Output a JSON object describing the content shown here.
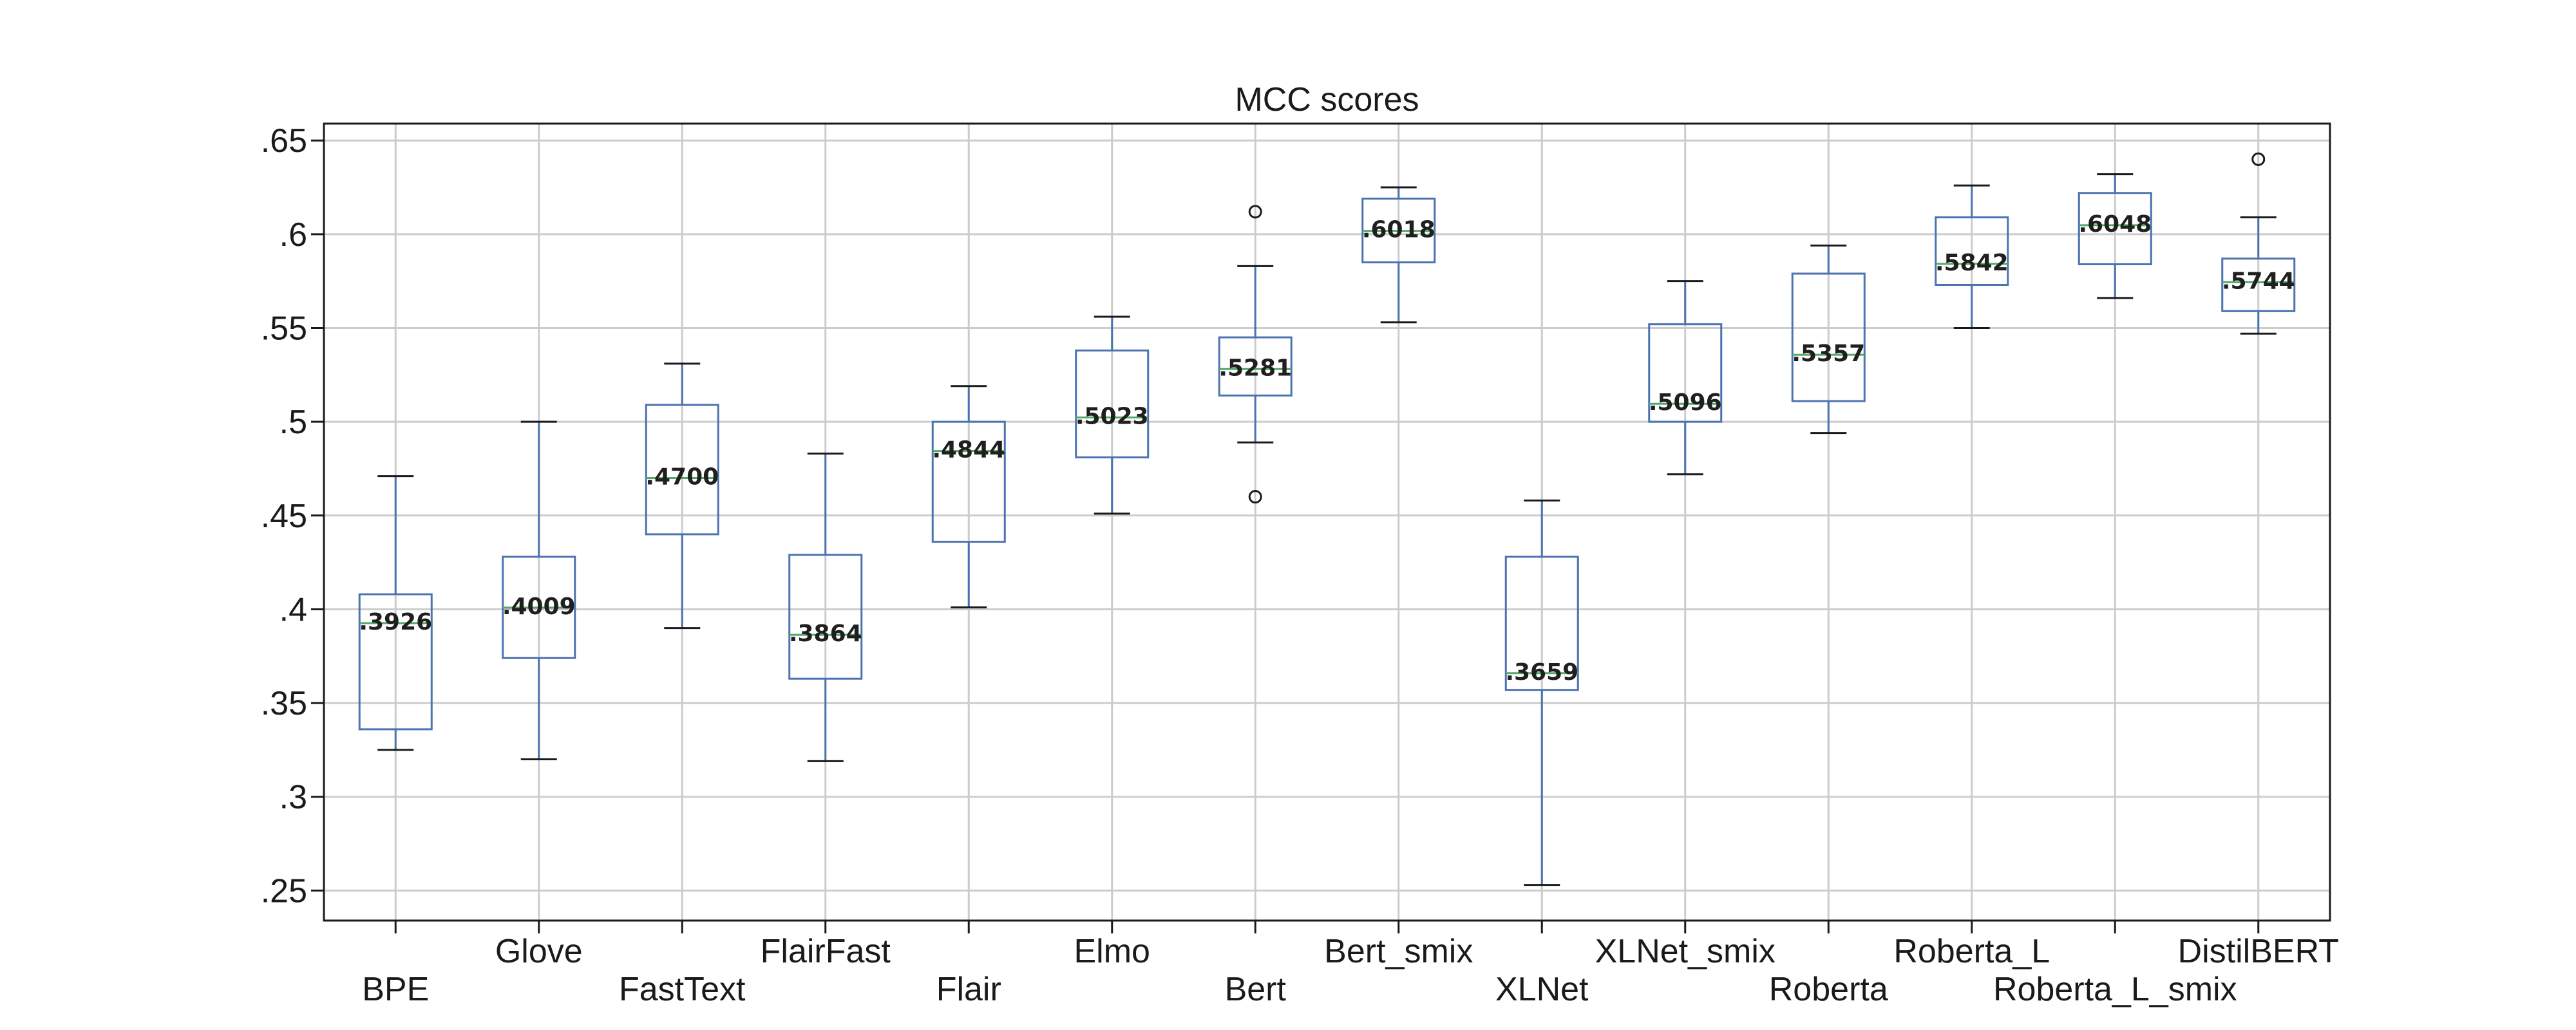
{
  "chart_data": {
    "type": "box",
    "title": "MCC scores",
    "xlabel": "",
    "ylabel": "",
    "ylim": [
      0.234,
      0.659
    ],
    "yticks": [
      ".25",
      ".3",
      ".35",
      ".4",
      ".45",
      ".5",
      ".55",
      ".6",
      ".65"
    ],
    "ytick_values": [
      0.25,
      0.3,
      0.35,
      0.4,
      0.45,
      0.5,
      0.55,
      0.6,
      0.65
    ],
    "grid": true,
    "box_color": "#4c72b0",
    "median_color": "#55a868",
    "categories": [
      "BPE",
      "Glove",
      "FastText",
      "FlairFast",
      "Flair",
      "Elmo",
      "Bert",
      "Bert_smix",
      "XLNet",
      "XLNet_smix",
      "Roberta",
      "Roberta_L",
      "Roberta_L_smix",
      "DistilBERT"
    ],
    "series": [
      {
        "category": "BPE",
        "whisker_low": 0.325,
        "q1": 0.336,
        "median": 0.3926,
        "q3": 0.408,
        "whisker_high": 0.471,
        "outliers": [],
        "median_label": ".3926"
      },
      {
        "category": "Glove",
        "whisker_low": 0.32,
        "q1": 0.374,
        "median": 0.4009,
        "q3": 0.428,
        "whisker_high": 0.5,
        "outliers": [],
        "median_label": ".4009"
      },
      {
        "category": "FastText",
        "whisker_low": 0.39,
        "q1": 0.44,
        "median": 0.47,
        "q3": 0.509,
        "whisker_high": 0.531,
        "outliers": [],
        "median_label": ".4700"
      },
      {
        "category": "FlairFast",
        "whisker_low": 0.319,
        "q1": 0.363,
        "median": 0.3864,
        "q3": 0.429,
        "whisker_high": 0.483,
        "outliers": [],
        "median_label": ".3864"
      },
      {
        "category": "Flair",
        "whisker_low": 0.401,
        "q1": 0.436,
        "median": 0.4844,
        "q3": 0.5,
        "whisker_high": 0.519,
        "outliers": [],
        "median_label": ".4844"
      },
      {
        "category": "Elmo",
        "whisker_low": 0.451,
        "q1": 0.481,
        "median": 0.5023,
        "q3": 0.538,
        "whisker_high": 0.556,
        "outliers": [],
        "median_label": ".5023"
      },
      {
        "category": "Bert",
        "whisker_low": 0.489,
        "q1": 0.514,
        "median": 0.5281,
        "q3": 0.545,
        "whisker_high": 0.583,
        "outliers": [
          0.612,
          0.46
        ],
        "median_label": ".5281"
      },
      {
        "category": "Bert_smix",
        "whisker_low": 0.553,
        "q1": 0.585,
        "median": 0.6018,
        "q3": 0.619,
        "whisker_high": 0.625,
        "outliers": [],
        "median_label": ".6018"
      },
      {
        "category": "XLNet",
        "whisker_low": 0.253,
        "q1": 0.357,
        "median": 0.3659,
        "q3": 0.428,
        "whisker_high": 0.458,
        "outliers": [],
        "median_label": ".3659"
      },
      {
        "category": "XLNet_smix",
        "whisker_low": 0.472,
        "q1": 0.5,
        "median": 0.5096,
        "q3": 0.552,
        "whisker_high": 0.575,
        "outliers": [],
        "median_label": ".5096"
      },
      {
        "category": "Roberta",
        "whisker_low": 0.494,
        "q1": 0.511,
        "median": 0.5357,
        "q3": 0.579,
        "whisker_high": 0.594,
        "outliers": [],
        "median_label": ".5357"
      },
      {
        "category": "Roberta_L",
        "whisker_low": 0.55,
        "q1": 0.573,
        "median": 0.5842,
        "q3": 0.609,
        "whisker_high": 0.626,
        "outliers": [],
        "median_label": ".5842"
      },
      {
        "category": "Roberta_L_smix",
        "whisker_low": 0.566,
        "q1": 0.584,
        "median": 0.6048,
        "q3": 0.622,
        "whisker_high": 0.632,
        "outliers": [],
        "median_label": ".6048"
      },
      {
        "category": "DistilBERT",
        "whisker_low": 0.547,
        "q1": 0.559,
        "median": 0.5744,
        "q3": 0.587,
        "whisker_high": 0.609,
        "outliers": [
          0.64
        ],
        "median_label": ".5744"
      }
    ]
  }
}
